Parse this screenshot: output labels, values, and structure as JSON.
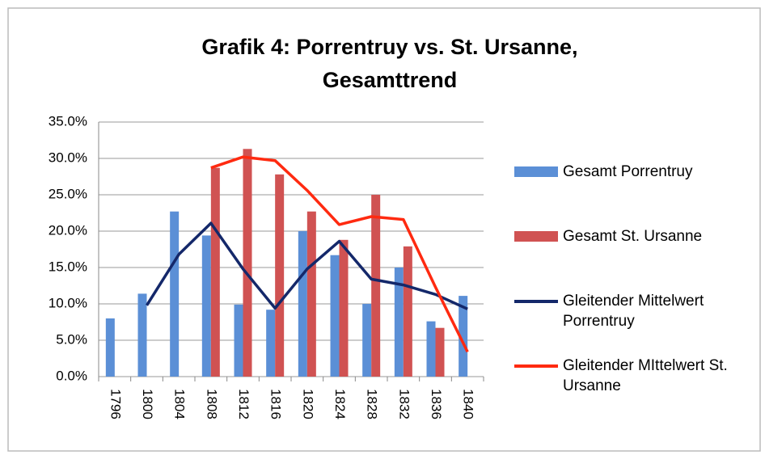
{
  "chart_data": {
    "type": "bar",
    "title": [
      "Grafik 4: Porrentruy vs. St. Ursanne,",
      "Gesamttrend"
    ],
    "categories": [
      "1796",
      "1800",
      "1804",
      "1808",
      "1812",
      "1816",
      "1820",
      "1824",
      "1828",
      "1832",
      "1836",
      "1840"
    ],
    "series": [
      {
        "name": "Gesamt Porrentruy",
        "type": "bar",
        "color": "#5b8fd6",
        "values": [
          8.0,
          11.4,
          22.7,
          19.4,
          9.9,
          9.2,
          20.0,
          16.7,
          10.0,
          15.0,
          7.6,
          11.1
        ]
      },
      {
        "name": "Gesamt St. Ursanne",
        "type": "bar",
        "color": "#d05252",
        "values": [
          null,
          null,
          null,
          28.7,
          31.3,
          27.8,
          22.7,
          18.8,
          25.0,
          17.9,
          6.7,
          null
        ]
      },
      {
        "name": "Gleitender Mittelwert Porrentruy",
        "type": "line",
        "color": "#14286a",
        "values": [
          null,
          9.8,
          16.8,
          21.1,
          14.8,
          9.4,
          14.8,
          18.6,
          13.4,
          12.6,
          11.3,
          9.3
        ]
      },
      {
        "name": "Gleitender MIttelwert St. Ursanne",
        "type": "line",
        "color": "#ff2a10",
        "values": [
          null,
          null,
          null,
          28.7,
          30.2,
          29.7,
          25.6,
          20.9,
          22.0,
          21.6,
          12.3,
          3.4
        ]
      }
    ],
    "ylim": [
      0,
      35
    ],
    "yticks": [
      {
        "value": 0,
        "label": "0.0%"
      },
      {
        "value": 5,
        "label": "5.0%"
      },
      {
        "value": 10,
        "label": "10.0%"
      },
      {
        "value": 15,
        "label": "15.0%"
      },
      {
        "value": 20,
        "label": "20.0%"
      },
      {
        "value": 25,
        "label": "25.0%"
      },
      {
        "value": 30,
        "label": "30.0%"
      },
      {
        "value": 35,
        "label": "35.0%"
      }
    ],
    "grid": true,
    "legend": "right"
  }
}
